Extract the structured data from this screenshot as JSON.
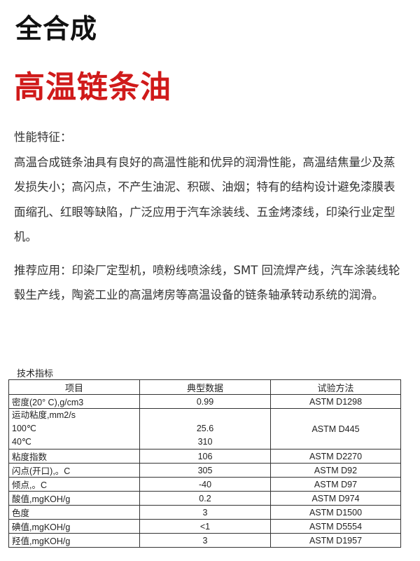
{
  "title_line1": "全合成",
  "title_line2": "高温链条油",
  "features_heading": "性能特征：",
  "features_text": "高温合成链条油具有良好的高温性能和优异的润滑性能，高温结焦量少及蒸发损失小；高闪点，不产生油泥、积碳、油烟；特有的结构设计避免漆膜表面缩孔、红眼等缺陷，广泛应用于汽车涂装线、五金烤漆线，印染行业定型机。",
  "application_text": "推荐应用：印染厂定型机，喷粉线喷涂线，SMT 回流焊产线，汽车涂装线轮毂生产线，陶瓷工业的高温烤房等高温设备的链条轴承转动系统的润滑。",
  "spec_heading": "技术指标",
  "table": {
    "headers": [
      "项目",
      "典型数据",
      "试验方法"
    ],
    "rows": [
      {
        "item": "密度(20° C),g/cm3",
        "value": "0.99",
        "method": "ASTM D1298"
      },
      {
        "item": "运动粘度,mm2/s",
        "sub1": "100℃",
        "sub2": "40℃",
        "value1": "25.6",
        "value2": "310",
        "method": "ASTM D445"
      },
      {
        "item": "粘度指数",
        "value": "106",
        "method": "ASTM D2270"
      },
      {
        "item": "闪点(开口),。C",
        "value": "305",
        "method": "ASTM D92"
      },
      {
        "item": "倾点,。C",
        "value": "-40",
        "method": "ASTM D97"
      },
      {
        "item": "酸值,mgKOH/g",
        "value": "0.2",
        "method": "ASTM D974"
      },
      {
        "item": "色度",
        "value": "3",
        "method": "ASTM D1500"
      },
      {
        "item": "碘值,mgKOH/g",
        "value": "<1",
        "method": "ASTM D5554"
      },
      {
        "item": "羟值,mgKOH/g",
        "value": "3",
        "method": "ASTM D1957"
      }
    ]
  }
}
